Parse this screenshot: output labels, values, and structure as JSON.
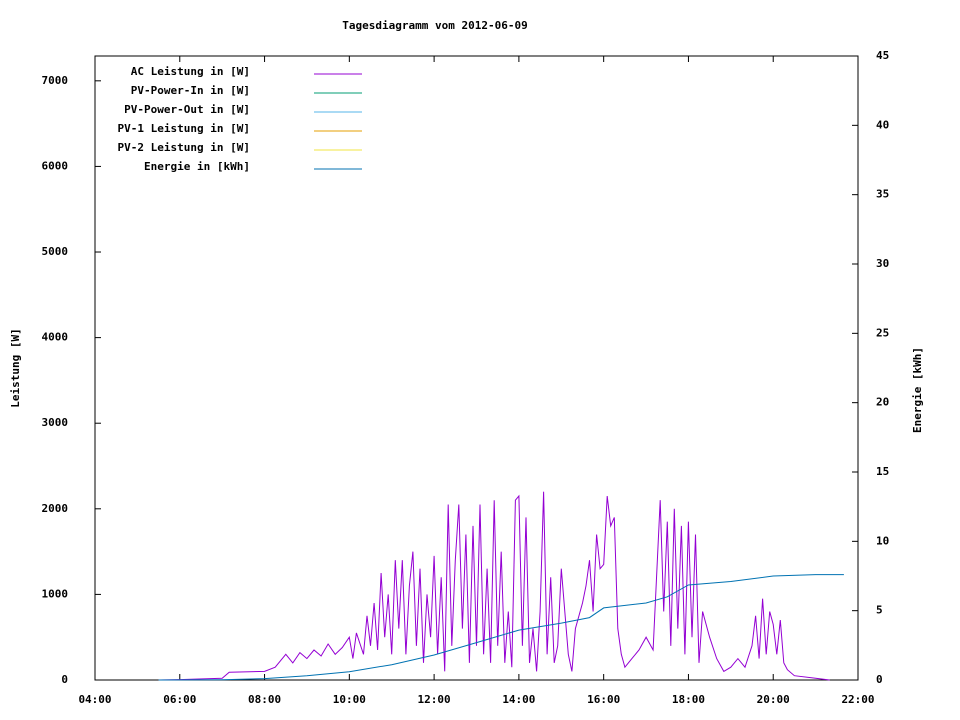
{
  "chart_data": {
    "type": "line",
    "title": "Tagesdiagramm vom 2012-06-09",
    "y_label": "Leistung [W]",
    "y2_label": "Energie [kWh]",
    "xlim": [
      4,
      22
    ],
    "xticks": [
      {
        "value": 4,
        "label": "04:00"
      },
      {
        "value": 6,
        "label": "06:00"
      },
      {
        "value": 8,
        "label": "08:00"
      },
      {
        "value": 10,
        "label": "10:00"
      },
      {
        "value": 12,
        "label": "12:00"
      },
      {
        "value": 14,
        "label": "14:00"
      },
      {
        "value": 16,
        "label": "16:00"
      },
      {
        "value": 18,
        "label": "18:00"
      },
      {
        "value": 20,
        "label": "20:00"
      },
      {
        "value": 22,
        "label": "22:00"
      }
    ],
    "ylim": [
      0,
      7290
    ],
    "yticks": [
      0,
      1000,
      2000,
      3000,
      4000,
      5000,
      6000,
      7000
    ],
    "y2lim": [
      0,
      45
    ],
    "y2ticks": [
      0,
      5,
      10,
      15,
      20,
      25,
      30,
      35,
      40,
      45
    ],
    "legend": "top-left",
    "series": [
      {
        "name": "AC Leistung in [W]",
        "color": "#9400d3",
        "x": [
          "05:30",
          "06:00",
          "07:00",
          "07:10",
          "08:00",
          "08:15",
          "08:30",
          "08:40",
          "08:50",
          "09:00",
          "09:10",
          "09:20",
          "09:30",
          "09:40",
          "09:50",
          "10:00",
          "10:05",
          "10:10",
          "10:20",
          "10:25",
          "10:30",
          "10:35",
          "10:40",
          "10:45",
          "10:50",
          "10:55",
          "11:00",
          "11:05",
          "11:10",
          "11:15",
          "11:20",
          "11:25",
          "11:30",
          "11:35",
          "11:40",
          "11:45",
          "11:50",
          "11:55",
          "12:00",
          "12:05",
          "12:10",
          "12:15",
          "12:20",
          "12:25",
          "12:30",
          "12:35",
          "12:40",
          "12:45",
          "12:50",
          "12:55",
          "13:00",
          "13:05",
          "13:10",
          "13:15",
          "13:20",
          "13:25",
          "13:30",
          "13:35",
          "13:40",
          "13:45",
          "13:50",
          "13:55",
          "14:00",
          "14:05",
          "14:10",
          "14:15",
          "14:20",
          "14:25",
          "14:30",
          "14:35",
          "14:40",
          "14:45",
          "14:50",
          "14:55",
          "15:00",
          "15:10",
          "15:15",
          "15:20",
          "15:30",
          "15:35",
          "15:40",
          "15:45",
          "15:50",
          "15:55",
          "16:00",
          "16:05",
          "16:10",
          "16:15",
          "16:20",
          "16:25",
          "16:30",
          "16:40",
          "16:50",
          "17:00",
          "17:10",
          "17:20",
          "17:25",
          "17:30",
          "17:35",
          "17:40",
          "17:45",
          "17:50",
          "17:55",
          "18:00",
          "18:05",
          "18:10",
          "18:15",
          "18:20",
          "18:30",
          "18:40",
          "18:50",
          "19:00",
          "19:10",
          "19:20",
          "19:30",
          "19:35",
          "19:40",
          "19:45",
          "19:50",
          "19:55",
          "20:00",
          "20:05",
          "20:10",
          "20:15",
          "20:20",
          "20:30",
          "21:00",
          "21:20"
        ],
        "values": [
          0,
          5,
          20,
          90,
          100,
          150,
          300,
          200,
          320,
          250,
          350,
          280,
          420,
          300,
          380,
          500,
          250,
          550,
          300,
          750,
          400,
          900,
          350,
          1250,
          500,
          1000,
          300,
          1400,
          600,
          1400,
          300,
          1100,
          1500,
          400,
          1300,
          200,
          1000,
          500,
          1450,
          300,
          1200,
          100,
          2050,
          400,
          1400,
          2050,
          600,
          1700,
          200,
          1800,
          400,
          2050,
          300,
          1300,
          200,
          2100,
          400,
          1500,
          200,
          800,
          150,
          2100,
          2150,
          400,
          1900,
          200,
          600,
          100,
          800,
          2200,
          300,
          1200,
          200,
          400,
          1300,
          300,
          100,
          600,
          900,
          1100,
          1400,
          800,
          1700,
          1300,
          1350,
          2150,
          1800,
          1900,
          600,
          300,
          150,
          250,
          350,
          500,
          350,
          2100,
          800,
          1850,
          400,
          2000,
          600,
          1800,
          300,
          1850,
          500,
          1700,
          200,
          800,
          500,
          250,
          100,
          150,
          250,
          150,
          400,
          750,
          250,
          950,
          300,
          800,
          650,
          300,
          700,
          200,
          120,
          50,
          20,
          0
        ]
      },
      {
        "name": "PV-Power-In in [W]",
        "color": "#009e73",
        "x": [],
        "values": []
      },
      {
        "name": "PV-Power-Out in [W]",
        "color": "#56b4e9",
        "x": [],
        "values": []
      },
      {
        "name": "PV-1 Leistung in [W]",
        "color": "#e69f00",
        "x": [],
        "values": []
      },
      {
        "name": "PV-2 Leistung in [W]",
        "color": "#f0e442",
        "x": [],
        "values": []
      },
      {
        "name": "Energie in [kWh]",
        "color": "#0072b2",
        "axis": "y2",
        "x": [
          "05:30",
          "07:00",
          "08:00",
          "09:00",
          "10:00",
          "11:00",
          "12:00",
          "13:00",
          "14:00",
          "15:00",
          "15:40",
          "16:00",
          "17:00",
          "17:30",
          "18:00",
          "19:00",
          "20:00",
          "21:00",
          "21:40"
        ],
        "values": [
          0,
          0.02,
          0.1,
          0.3,
          0.6,
          1.1,
          1.8,
          2.7,
          3.6,
          4.1,
          4.5,
          5.2,
          5.55,
          6.0,
          6.85,
          7.1,
          7.5,
          7.6,
          7.6
        ]
      }
    ]
  }
}
